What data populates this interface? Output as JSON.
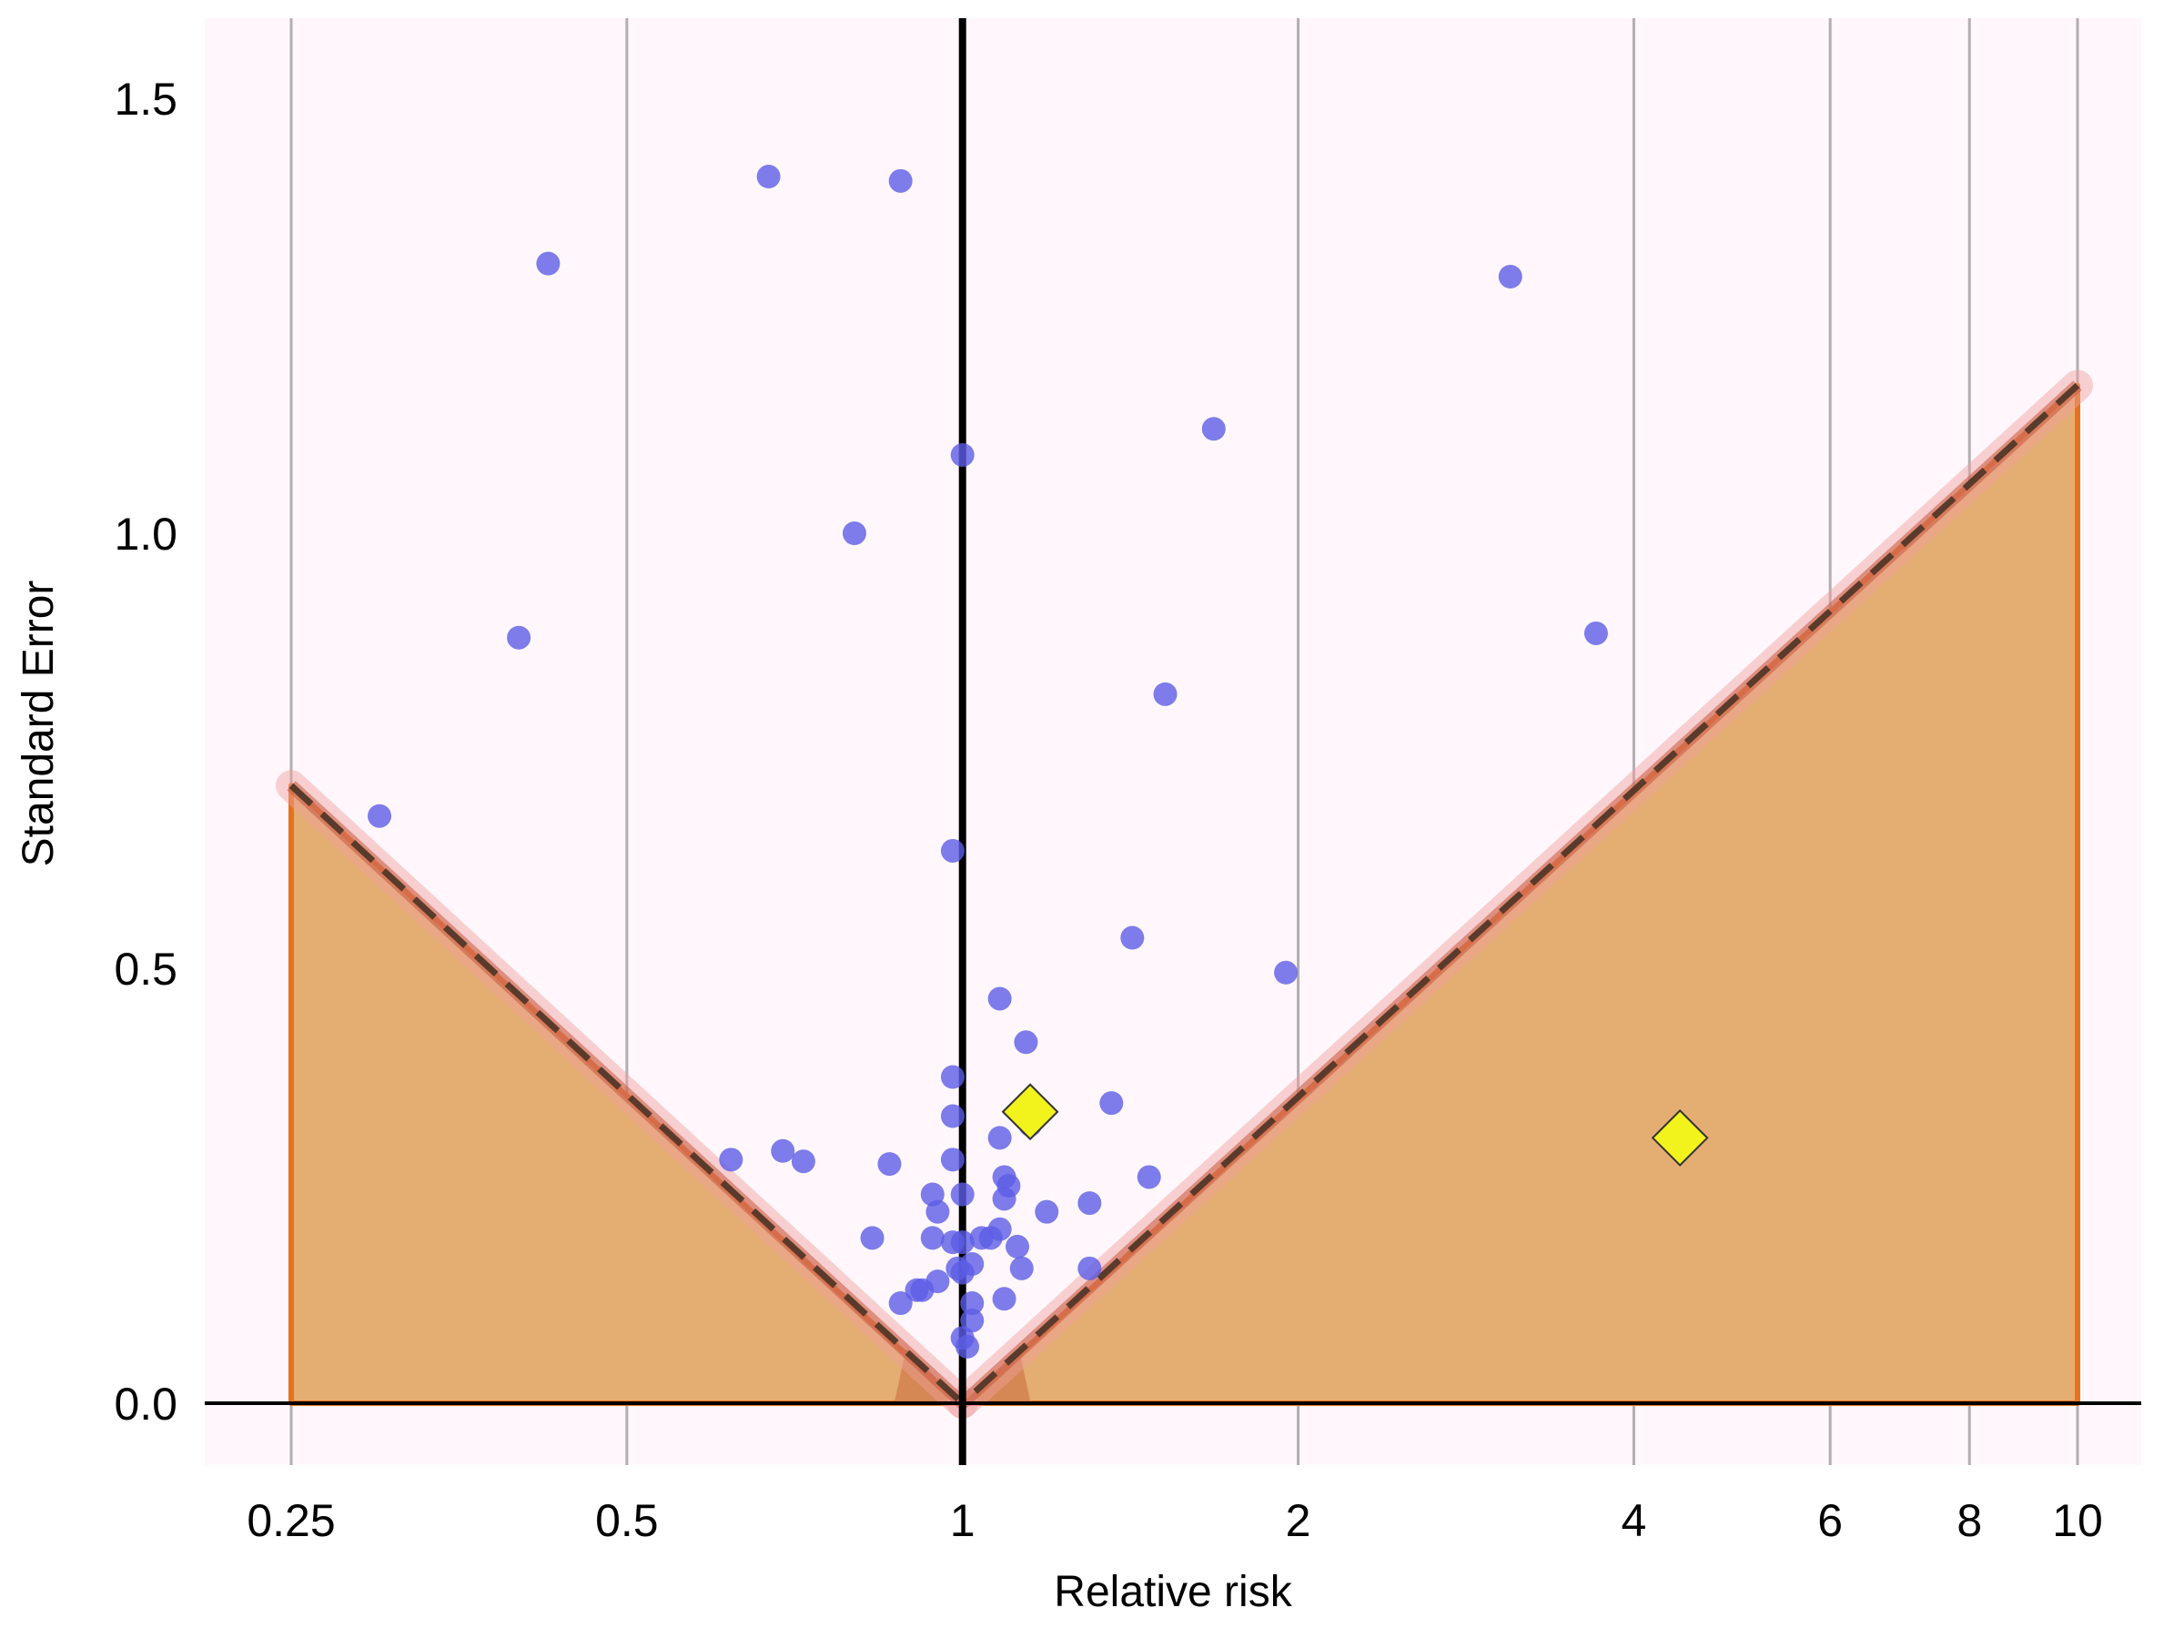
{
  "chart_data": {
    "type": "scatter",
    "title": "",
    "xlabel": "Relative risk",
    "ylabel": "Standard Error",
    "x_scale": "log",
    "xlim": [
      0.2,
      13.5
    ],
    "ylim": [
      -0.07,
      1.6
    ],
    "x_ticks": [
      0.25,
      0.5,
      1,
      2,
      4,
      6,
      8,
      10
    ],
    "x_tick_labels": [
      "0.25",
      "0.5",
      "1",
      "2",
      "4",
      "6",
      "8",
      "10"
    ],
    "y_ticks": [
      0.0,
      0.5,
      1.0,
      1.5
    ],
    "y_tick_labels": [
      "0.0",
      "0.5",
      "1.0",
      "1.5"
    ],
    "grid": "vertical",
    "reference_line_x": 1,
    "funnel": {
      "center": 1,
      "se_max": 1.18,
      "left_end": {
        "x": 0.25,
        "se": 0.71
      },
      "right_end": {
        "x": 10,
        "se": 1.17
      }
    },
    "series": [
      {
        "marker": "circle",
        "color": "#5c5ce6",
        "points": [
          {
            "x": 0.67,
            "y": 1.41
          },
          {
            "x": 0.88,
            "y": 1.405
          },
          {
            "x": 0.425,
            "y": 1.31
          },
          {
            "x": 3.1,
            "y": 1.295
          },
          {
            "x": 1.68,
            "y": 1.12
          },
          {
            "x": 1.0,
            "y": 1.09
          },
          {
            "x": 0.8,
            "y": 1.0
          },
          {
            "x": 0.4,
            "y": 0.88
          },
          {
            "x": 3.7,
            "y": 0.885
          },
          {
            "x": 1.52,
            "y": 0.815
          },
          {
            "x": 0.3,
            "y": 0.675
          },
          {
            "x": 0.98,
            "y": 0.635
          },
          {
            "x": 1.42,
            "y": 0.535
          },
          {
            "x": 1.95,
            "y": 0.495
          },
          {
            "x": 1.08,
            "y": 0.465
          },
          {
            "x": 1.14,
            "y": 0.415
          },
          {
            "x": 0.98,
            "y": 0.375
          },
          {
            "x": 1.36,
            "y": 0.345
          },
          {
            "x": 0.98,
            "y": 0.33
          },
          {
            "x": 1.15,
            "y": 0.32
          },
          {
            "x": 1.08,
            "y": 0.305
          },
          {
            "x": 0.69,
            "y": 0.29
          },
          {
            "x": 0.62,
            "y": 0.28
          },
          {
            "x": 0.72,
            "y": 0.278
          },
          {
            "x": 0.86,
            "y": 0.275
          },
          {
            "x": 0.98,
            "y": 0.28
          },
          {
            "x": 1.47,
            "y": 0.26
          },
          {
            "x": 1.09,
            "y": 0.26
          },
          {
            "x": 1.1,
            "y": 0.25
          },
          {
            "x": 0.94,
            "y": 0.24
          },
          {
            "x": 1.0,
            "y": 0.24
          },
          {
            "x": 1.09,
            "y": 0.235
          },
          {
            "x": 1.3,
            "y": 0.23
          },
          {
            "x": 0.95,
            "y": 0.22
          },
          {
            "x": 1.19,
            "y": 0.22
          },
          {
            "x": 1.08,
            "y": 0.2
          },
          {
            "x": 0.83,
            "y": 0.19
          },
          {
            "x": 0.94,
            "y": 0.19
          },
          {
            "x": 0.98,
            "y": 0.185
          },
          {
            "x": 1.0,
            "y": 0.185
          },
          {
            "x": 1.04,
            "y": 0.19
          },
          {
            "x": 1.06,
            "y": 0.19
          },
          {
            "x": 1.12,
            "y": 0.18
          },
          {
            "x": 1.3,
            "y": 0.155
          },
          {
            "x": 1.13,
            "y": 0.155
          },
          {
            "x": 0.99,
            "y": 0.155
          },
          {
            "x": 1.0,
            "y": 0.15
          },
          {
            "x": 1.02,
            "y": 0.16
          },
          {
            "x": 0.91,
            "y": 0.13
          },
          {
            "x": 0.95,
            "y": 0.14
          },
          {
            "x": 0.92,
            "y": 0.13
          },
          {
            "x": 0.88,
            "y": 0.115
          },
          {
            "x": 1.02,
            "y": 0.115
          },
          {
            "x": 1.09,
            "y": 0.12
          },
          {
            "x": 1.02,
            "y": 0.095
          },
          {
            "x": 1.0,
            "y": 0.075
          },
          {
            "x": 1.01,
            "y": 0.065
          }
        ]
      },
      {
        "marker": "diamond",
        "color": "#f2f21c",
        "points": [
          {
            "x": 1.15,
            "y": 0.335
          },
          {
            "x": 4.4,
            "y": 0.305
          }
        ]
      }
    ],
    "colors": {
      "background": "#fff7fb",
      "funnel_fill": "#e4ad72",
      "funnel_edge": "#e8721c",
      "funnel_glow": "#f0a0a0",
      "guide_dash": "#5a3a2a",
      "grid": "#b3aeb0",
      "axis": "#000000"
    }
  }
}
